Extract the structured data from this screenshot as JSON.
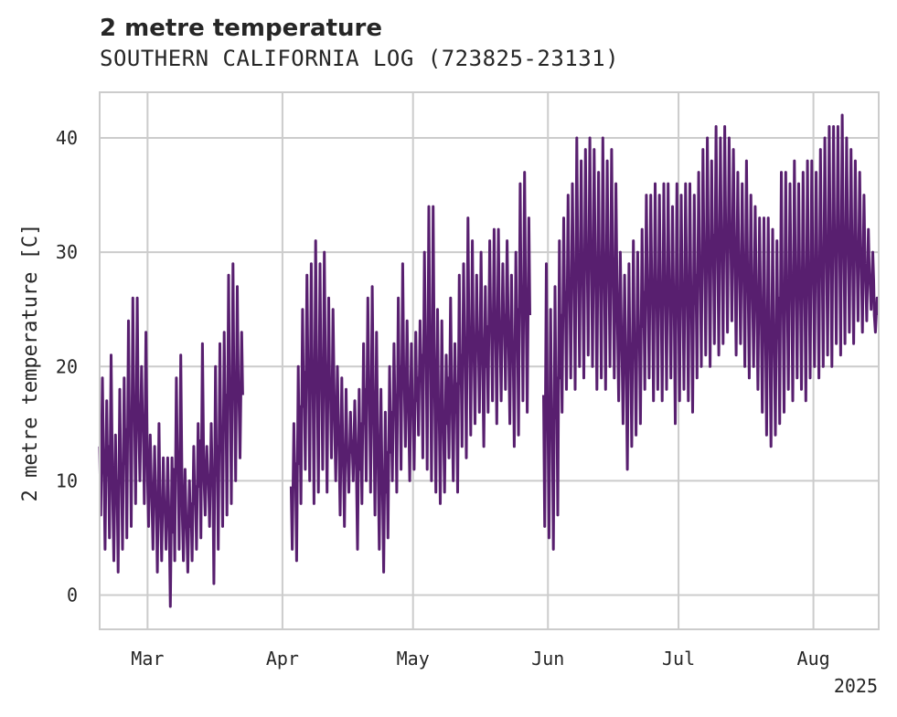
{
  "chart_data": {
    "type": "line",
    "title": "2 metre temperature",
    "subtitle": "SOUTHERN CALIFORNIA LOG (723825-23131)",
    "ylabel": "2 metre temperature [C]",
    "xlabel": "",
    "year_label": "2025",
    "ylim": [
      -3,
      44
    ],
    "yticks": [
      0,
      10,
      20,
      30,
      40
    ],
    "xlim": [
      "2025-02-18",
      "2025-08-16"
    ],
    "xticks": [
      {
        "label": "Mar",
        "date": "2025-03-01"
      },
      {
        "label": "Apr",
        "date": "2025-04-01"
      },
      {
        "label": "May",
        "date": "2025-05-01"
      },
      {
        "label": "Jun",
        "date": "2025-06-01"
      },
      {
        "label": "Jul",
        "date": "2025-07-01"
      },
      {
        "label": "Aug",
        "date": "2025-08-01"
      }
    ],
    "grid": true,
    "series": [
      {
        "color": "#581f6f",
        "segments": [
          {
            "start": "2025-02-18",
            "end": "2025-03-30",
            "daily": [
              [
                7,
                19
              ],
              [
                4,
                17
              ],
              [
                5,
                21
              ],
              [
                3,
                14
              ],
              [
                2,
                18
              ],
              [
                4,
                19
              ],
              [
                5,
                24
              ],
              [
                6,
                26
              ],
              [
                8,
                26
              ],
              [
                10,
                20
              ],
              [
                8,
                23
              ],
              [
                6,
                14
              ],
              [
                4,
                13
              ],
              [
                2,
                15
              ],
              [
                3,
                12
              ],
              [
                4,
                12
              ],
              [
                -1,
                12
              ],
              [
                3,
                19
              ],
              [
                4,
                21
              ],
              [
                3,
                11
              ],
              [
                2,
                10
              ],
              [
                3,
                13
              ],
              [
                4,
                15
              ],
              [
                5,
                22
              ],
              [
                7,
                13
              ],
              [
                6,
                15
              ],
              [
                1,
                20
              ],
              [
                4,
                22
              ],
              [
                6,
                23
              ],
              [
                7,
                28
              ],
              [
                8,
                29
              ],
              [
                10,
                27
              ],
              [
                12,
                23
              ]
            ]
          },
          {
            "start": "2025-04-03",
            "end": "2025-05-31",
            "daily": [
              [
                4,
                15
              ],
              [
                3,
                20
              ],
              [
                8,
                25
              ],
              [
                11,
                28
              ],
              [
                10,
                29
              ],
              [
                8,
                31
              ],
              [
                9,
                29
              ],
              [
                11,
                30
              ],
              [
                9,
                26
              ],
              [
                12,
                25
              ],
              [
                10,
                20
              ],
              [
                7,
                19
              ],
              [
                6,
                18
              ],
              [
                9,
                16
              ],
              [
                10,
                17
              ],
              [
                4,
                18
              ],
              [
                8,
                22
              ],
              [
                10,
                26
              ],
              [
                9,
                27
              ],
              [
                7,
                23
              ],
              [
                4,
                18
              ],
              [
                2,
                16
              ],
              [
                5,
                20
              ],
              [
                10,
                22
              ],
              [
                9,
                26
              ],
              [
                11,
                29
              ],
              [
                13,
                24
              ],
              [
                10,
                22
              ],
              [
                11,
                23
              ],
              [
                14,
                24
              ],
              [
                12,
                30
              ],
              [
                11,
                34
              ],
              [
                10,
                34
              ],
              [
                9,
                25
              ],
              [
                8,
                24
              ],
              [
                9,
                21
              ],
              [
                12,
                26
              ],
              [
                10,
                22
              ],
              [
                9,
                28
              ],
              [
                13,
                29
              ],
              [
                12,
                33
              ],
              [
                14,
                31
              ],
              [
                15,
                28
              ],
              [
                16,
                30
              ],
              [
                13,
                27
              ],
              [
                16,
                31
              ],
              [
                17,
                32
              ],
              [
                15,
                32
              ],
              [
                17,
                29
              ],
              [
                18,
                31
              ],
              [
                15,
                28
              ],
              [
                13,
                30
              ],
              [
                14,
                36
              ],
              [
                17,
                37
              ],
              [
                16,
                33
              ]
            ]
          },
          {
            "start": "2025-05-31",
            "end": "2025-08-15",
            "daily": [
              [
                6,
                29
              ],
              [
                5,
                25
              ],
              [
                4,
                27
              ],
              [
                7,
                31
              ],
              [
                16,
                33
              ],
              [
                18,
                35
              ],
              [
                19,
                36
              ],
              [
                18,
                40
              ],
              [
                20,
                38
              ],
              [
                19,
                39
              ],
              [
                21,
                40
              ],
              [
                20,
                39
              ],
              [
                18,
                37
              ],
              [
                19,
                40
              ],
              [
                18,
                38
              ],
              [
                20,
                39
              ],
              [
                19,
                36
              ],
              [
                17,
                30
              ],
              [
                15,
                28
              ],
              [
                11,
                29
              ],
              [
                13,
                31
              ],
              [
                14,
                30
              ],
              [
                15,
                32
              ],
              [
                18,
                35
              ],
              [
                19,
                35
              ],
              [
                17,
                36
              ],
              [
                18,
                35
              ],
              [
                17,
                36
              ],
              [
                18,
                36
              ],
              [
                19,
                34
              ],
              [
                15,
                36
              ],
              [
                17,
                35
              ],
              [
                18,
                36
              ],
              [
                17,
                36
              ],
              [
                16,
                35
              ],
              [
                19,
                37
              ],
              [
                20,
                39
              ],
              [
                21,
                40
              ],
              [
                20,
                38
              ],
              [
                22,
                41
              ],
              [
                21,
                40
              ],
              [
                22,
                41
              ],
              [
                23,
                40
              ],
              [
                24,
                39
              ],
              [
                21,
                37
              ],
              [
                22,
                36
              ],
              [
                20,
                38
              ],
              [
                19,
                35
              ],
              [
                20,
                34
              ],
              [
                18,
                33
              ],
              [
                16,
                33
              ],
              [
                14,
                33
              ],
              [
                13,
                32
              ],
              [
                14,
                31
              ],
              [
                15,
                37
              ],
              [
                16,
                37
              ],
              [
                18,
                36
              ],
              [
                17,
                38
              ],
              [
                19,
                36
              ],
              [
                18,
                37
              ],
              [
                17,
                38
              ],
              [
                19,
                38
              ],
              [
                20,
                37
              ],
              [
                19,
                39
              ],
              [
                20,
                40
              ],
              [
                21,
                41
              ],
              [
                20,
                41
              ],
              [
                22,
                41
              ],
              [
                21,
                42
              ],
              [
                22,
                40
              ],
              [
                23,
                39
              ],
              [
                22,
                38
              ],
              [
                24,
                37
              ],
              [
                23,
                35
              ],
              [
                24,
                32
              ],
              [
                25,
                30
              ],
              [
                23,
                26
              ]
            ]
          }
        ]
      }
    ]
  }
}
